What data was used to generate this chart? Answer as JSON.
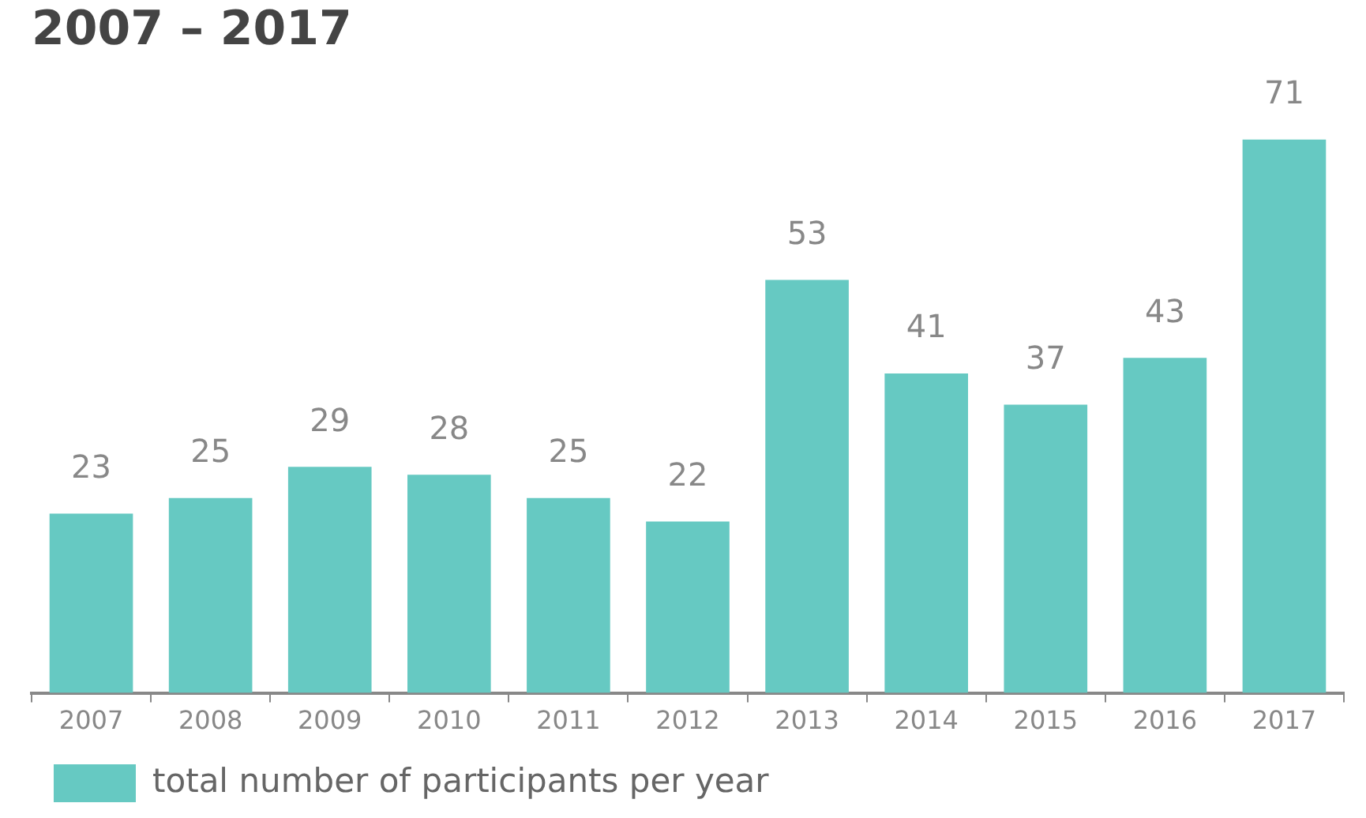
{
  "chart_data": {
    "type": "bar",
    "title": "2007 – 2017",
    "categories": [
      "2007",
      "2008",
      "2009",
      "2010",
      "2011",
      "2012",
      "2013",
      "2014",
      "2015",
      "2016",
      "2017"
    ],
    "series": [
      {
        "name": "total number of participants per year",
        "color": "#66c9c2",
        "values": [
          23,
          25,
          29,
          28,
          25,
          22,
          53,
          41,
          37,
          43,
          71
        ]
      }
    ],
    "data_labels": true,
    "grid": false,
    "legend": "bottom left"
  }
}
